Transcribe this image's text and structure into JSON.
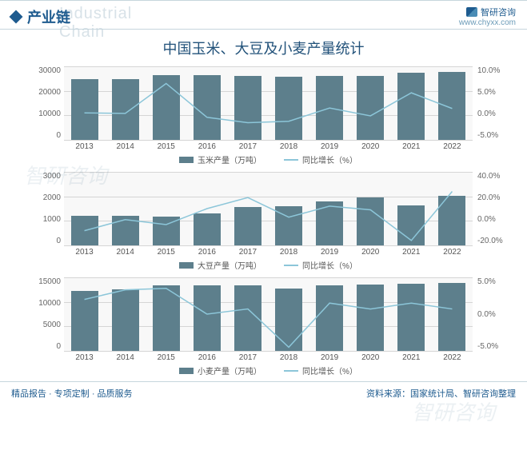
{
  "header": {
    "section": "产业链",
    "ghost": "Industrial Chain",
    "brand_name": "智研咨询",
    "brand_url": "www.chyxx.com"
  },
  "title": "中国玉米、大豆及小麦产量统计",
  "categories": [
    "2013",
    "2014",
    "2015",
    "2016",
    "2017",
    "2018",
    "2019",
    "2020",
    "2021",
    "2022"
  ],
  "charts": [
    {
      "legend_bar": "玉米产量（万吨）",
      "legend_line": "同比增长（%）",
      "bar_color": "#5d7f8c",
      "line_color": "#8cc6d9",
      "left_ticks": [
        "30000",
        "20000",
        "10000",
        "0"
      ],
      "right_ticks": [
        "10.0%",
        "5.0%",
        "0.0%",
        "-5.0%"
      ],
      "left_max": 30000,
      "left_min": 0,
      "right_max": 10,
      "right_min": -5,
      "bars": [
        24800,
        24900,
        26500,
        26400,
        26000,
        25700,
        26100,
        26100,
        27300,
        27700
      ],
      "line": [
        0.5,
        0.4,
        6.5,
        -0.4,
        -1.5,
        -1.2,
        1.5,
        -0.1,
        4.6,
        1.4
      ]
    },
    {
      "legend_bar": "大豆产量（万吨）",
      "legend_line": "同比增长（%）",
      "bar_color": "#5d7f8c",
      "line_color": "#8cc6d9",
      "left_ticks": [
        "3000",
        "2000",
        "1000",
        "0"
      ],
      "right_ticks": [
        "40.0%",
        "20.0%",
        "0.0%",
        "-20.0%"
      ],
      "left_max": 3000,
      "left_min": 0,
      "right_max": 40,
      "right_min": -20,
      "bars": [
        1200,
        1220,
        1180,
        1300,
        1550,
        1600,
        1800,
        1960,
        1640,
        2030
      ],
      "line": [
        -8,
        1,
        -3,
        10,
        19,
        3,
        12,
        9,
        -16,
        24
      ]
    },
    {
      "legend_bar": "小麦产量（万吨）",
      "legend_line": "同比增长（%）",
      "bar_color": "#5d7f8c",
      "line_color": "#8cc6d9",
      "left_ticks": [
        "15000",
        "10000",
        "5000",
        "0"
      ],
      "right_ticks": [
        "5.0%",
        "0.0%",
        "-5.0%"
      ],
      "left_max": 15000,
      "left_min": 0,
      "right_max": 5,
      "right_min": -5,
      "bars": [
        12200,
        12600,
        13300,
        13300,
        13400,
        12800,
        13400,
        13500,
        13700,
        13800
      ],
      "line": [
        2.0,
        3.3,
        3.5,
        0.0,
        0.7,
        -4.5,
        1.5,
        0.7,
        1.5,
        0.7
      ]
    }
  ],
  "footer": {
    "left": "精品报告 · 专项定制 · 品质服务",
    "right": "资料来源：国家统计局、智研咨询整理"
  },
  "watermark": "智研咨询"
}
